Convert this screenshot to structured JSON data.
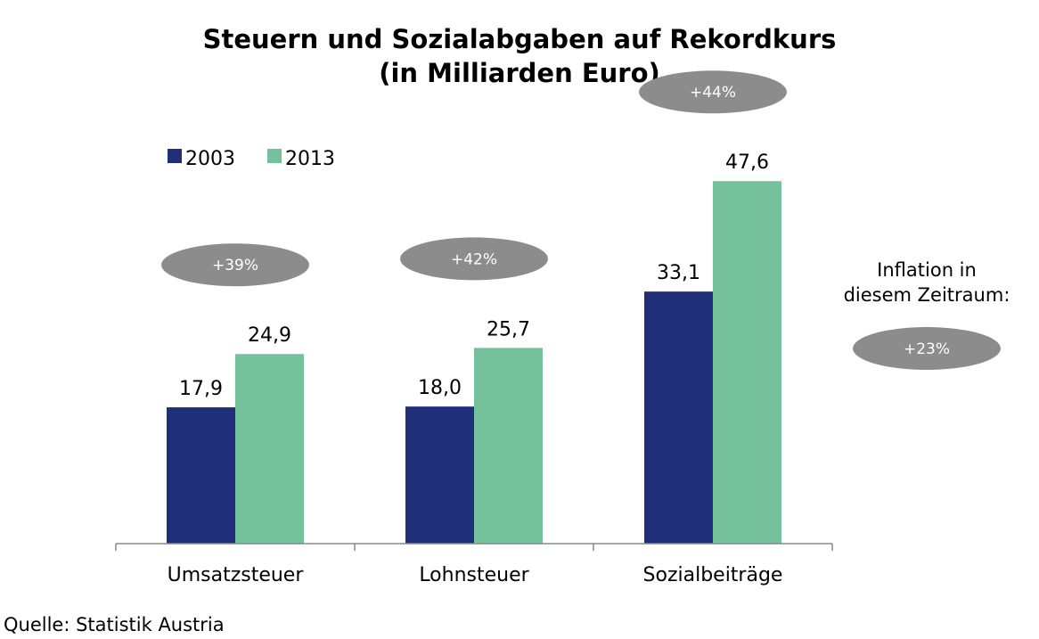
{
  "chart_data": {
    "type": "bar",
    "title": "Steuern und Sozialabgaben auf Rekordkurs",
    "subtitle": "(in Milliarden Euro)",
    "categories": [
      "Umsatzsteuer",
      "Lohnsteuer",
      "Sozialbeiträge"
    ],
    "series": [
      {
        "name": "2003",
        "values": [
          17.9,
          18.0,
          33.1
        ],
        "labels": [
          "17,9",
          "18,0",
          "33,1"
        ],
        "color": "#1f2f7a"
      },
      {
        "name": "2013",
        "values": [
          24.9,
          25.7,
          47.6
        ],
        "labels": [
          "24,9",
          "25,7",
          "47,6"
        ],
        "color": "#74c19c"
      }
    ],
    "changes": [
      "+39%",
      "+42%",
      "+44%"
    ],
    "ylim": [
      0,
      55
    ],
    "grid": false,
    "legend": "top-left",
    "pill_color": "#8c8c8c"
  },
  "inflation_note": {
    "line1": "Inflation in",
    "line2": "diesem Zeitraum:",
    "value": "+23%"
  },
  "source": "Quelle: Statistik Austria"
}
